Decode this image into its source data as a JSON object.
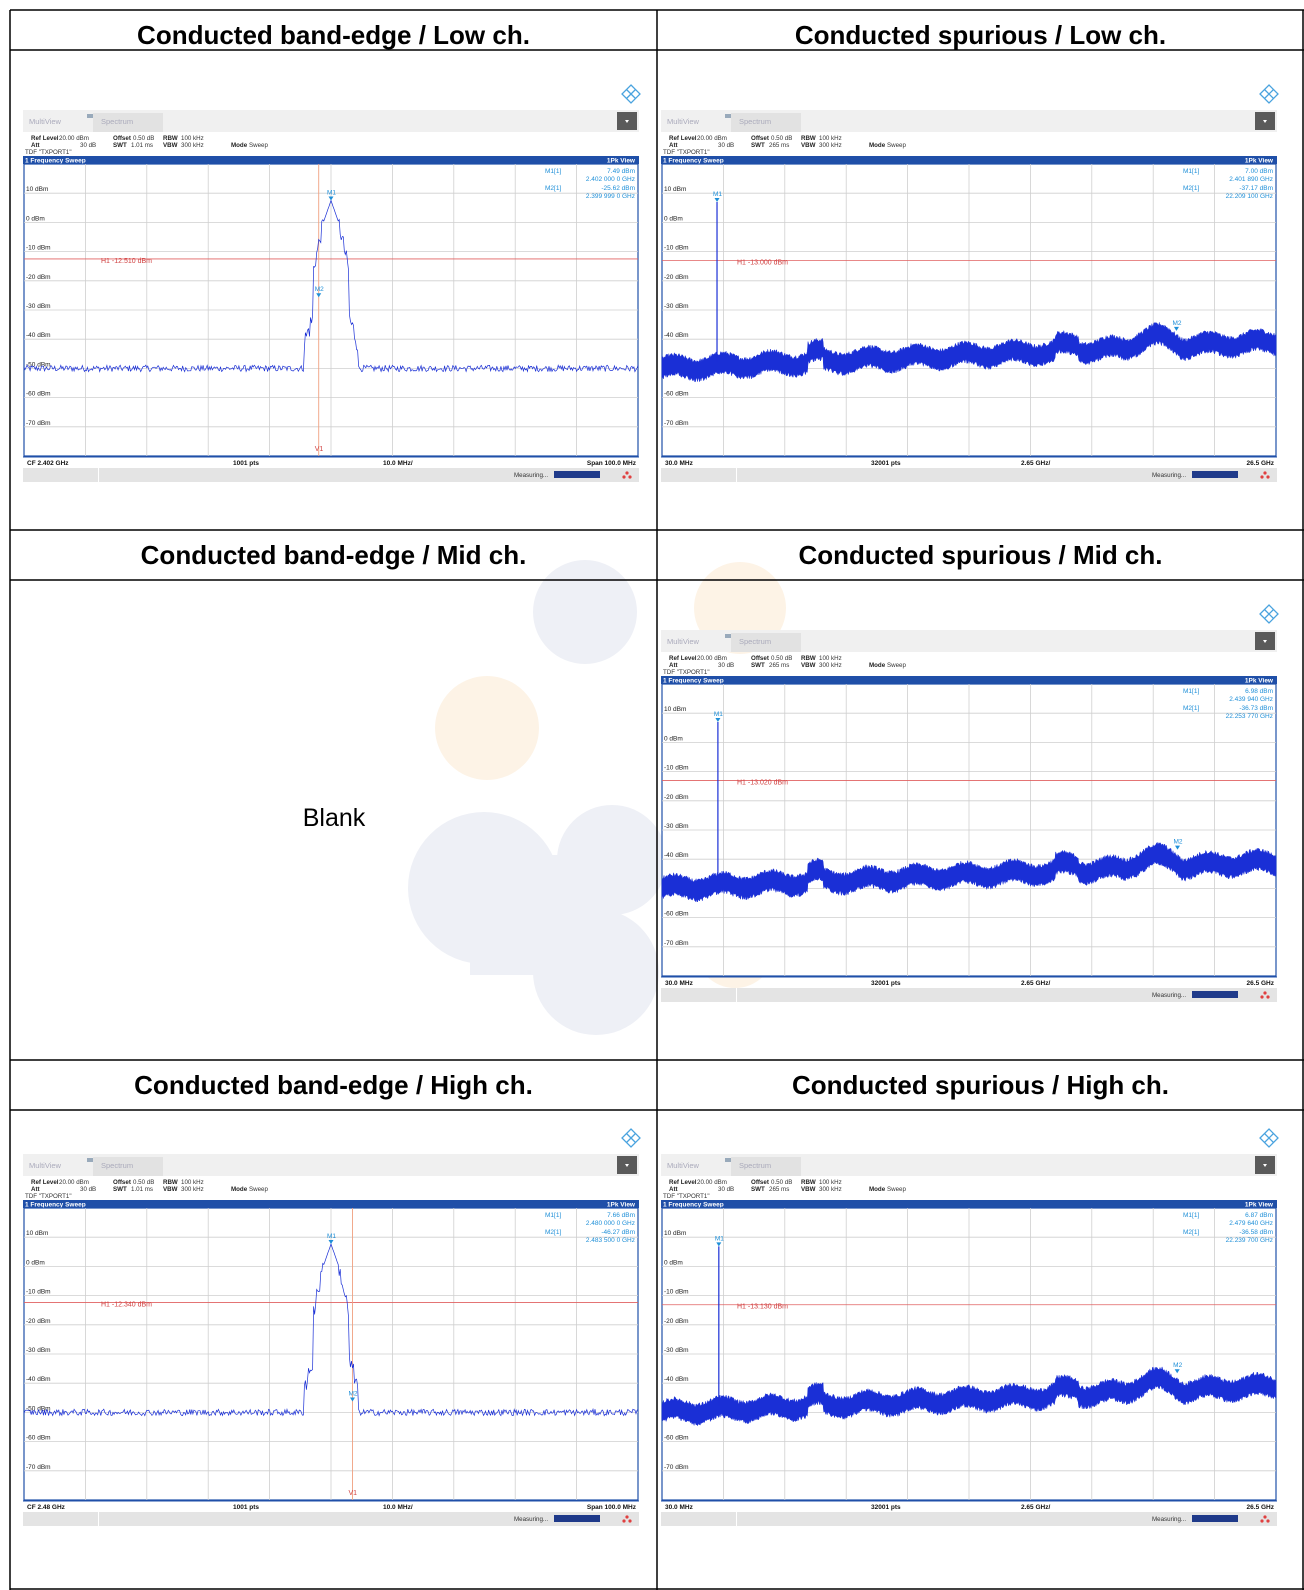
{
  "cells": [
    {
      "title": "Conducted band-edge / Low ch.",
      "kind": "bandedge",
      "ch": "low"
    },
    {
      "title": "Conducted spurious / Low ch.",
      "kind": "spurious",
      "ch": "low"
    },
    {
      "title": "Conducted band-edge / Mid ch.",
      "kind": "blank",
      "ch": "mid"
    },
    {
      "title": "Conducted spurious / Mid ch.",
      "kind": "spurious",
      "ch": "mid"
    },
    {
      "title": "Conducted band-edge / High ch.",
      "kind": "bandedge",
      "ch": "high"
    },
    {
      "title": "Conducted spurious / High ch.",
      "kind": "spurious",
      "ch": "high"
    }
  ],
  "blank_text": "Blank",
  "colors": {
    "trace": "#1a2fd6",
    "frame": "#1f4fa8",
    "marker": "#1e8fd8",
    "limit": "#e06060",
    "vline": "#f0a080"
  },
  "common": {
    "tab1": "MultiView",
    "tab2": "Spectrum",
    "ref_label": "Ref Level",
    "ref_value": "20.00 dBm",
    "offset_label": "Offset",
    "offset_value": "0.50 dB",
    "rbw_label": "RBW",
    "rbw_value": "100 kHz",
    "att_label": "Att",
    "att_value": "30 dB",
    "swt_label": "SWT",
    "vbw_label": "VBW",
    "vbw_value": "300 kHz",
    "mode_label": "Mode",
    "mode_value": "Sweep",
    "tdf": "TDF \"TXPORT1\"",
    "sweep_title": "1 Frequency Sweep",
    "view": "1Pk View",
    "measuring": "Measuring...",
    "ylabels": [
      "10 dBm",
      "0 dBm",
      "-10 dBm",
      "-20 dBm",
      "-30 dBm",
      "-40 dBm",
      "-50 dBm",
      "-60 dBm",
      "-70 dBm"
    ]
  },
  "screens": {
    "bandedge": {
      "swt": "1.01 ms",
      "left": "",
      "pts": "1001 pts",
      "div": "10.0 MHz/",
      "right": "Span 100.0 MHz"
    },
    "spurious": {
      "swt": "265 ms",
      "left": "30.0 MHz",
      "pts": "32001 pts",
      "div": "2.65 GHz/",
      "right": "26.5 GHz"
    }
  },
  "plots": {
    "bandedge_low": {
      "cf": "CF 2.402 GHz",
      "h1": "H1 -12.510 dBm",
      "h1_level": -12.51,
      "m1": [
        "M1[1]",
        "7.49 dBm",
        "2.402 000 0 GHz"
      ],
      "m2": [
        "M2[1]",
        "-25.62 dBm",
        "2.399 999 0 GHz"
      ],
      "peak_freq_mhz": 2402.0,
      "peak_level": 7.49,
      "m2_freq_mhz": 2399.999,
      "m2_level": -25.62,
      "v1_freq_mhz": 2400.0,
      "start_mhz": 2352.0,
      "stop_mhz": 2452.0
    },
    "bandedge_high": {
      "cf": "CF 2.48 GHz",
      "h1": "H1 -12.340 dBm",
      "h1_level": -12.34,
      "m1": [
        "M1[1]",
        "7.66 dBm",
        "2.480 000 0 GHz"
      ],
      "m2": [
        "M2[1]",
        "-46.27 dBm",
        "2.483 500 0 GHz"
      ],
      "peak_freq_mhz": 2480.0,
      "peak_level": 7.66,
      "m2_freq_mhz": 2483.5,
      "m2_level": -46.27,
      "v1_freq_mhz": 2483.5,
      "start_mhz": 2430.0,
      "stop_mhz": 2530.0
    },
    "spurious_low": {
      "h1": "H1 -13.000 dBm",
      "h1_level": -13.0,
      "m1": [
        "M1[1]",
        "7.00 dBm",
        "2.401 890 GHz"
      ],
      "m2": [
        "M2[1]",
        "-37.17 dBm",
        "22.209 100 GHz"
      ],
      "m1_freq_ghz": 2.40189,
      "m1_level": 7.0,
      "m2_freq_ghz": 22.2091,
      "m2_level": -37.17
    },
    "spurious_mid": {
      "h1": "H1 -13.020 dBm",
      "h1_level": -13.02,
      "m1": [
        "M1[1]",
        "6.98 dBm",
        "2.439 940 GHz"
      ],
      "m2": [
        "M2[1]",
        "-36.73 dBm",
        "22.253 770 GHz"
      ],
      "m1_freq_ghz": 2.43994,
      "m1_level": 6.98,
      "m2_freq_ghz": 22.25377,
      "m2_level": -36.73
    },
    "spurious_high": {
      "h1": "H1 -13.130 dBm",
      "h1_level": -13.13,
      "m1": [
        "M1[1]",
        "6.87 dBm",
        "2.479 640 GHz"
      ],
      "m2": [
        "M2[1]",
        "-36.58 dBm",
        "22.239 700 GHz"
      ],
      "m1_freq_ghz": 2.47964,
      "m1_level": 6.87,
      "m2_freq_ghz": 22.2397,
      "m2_level": -36.58
    }
  }
}
